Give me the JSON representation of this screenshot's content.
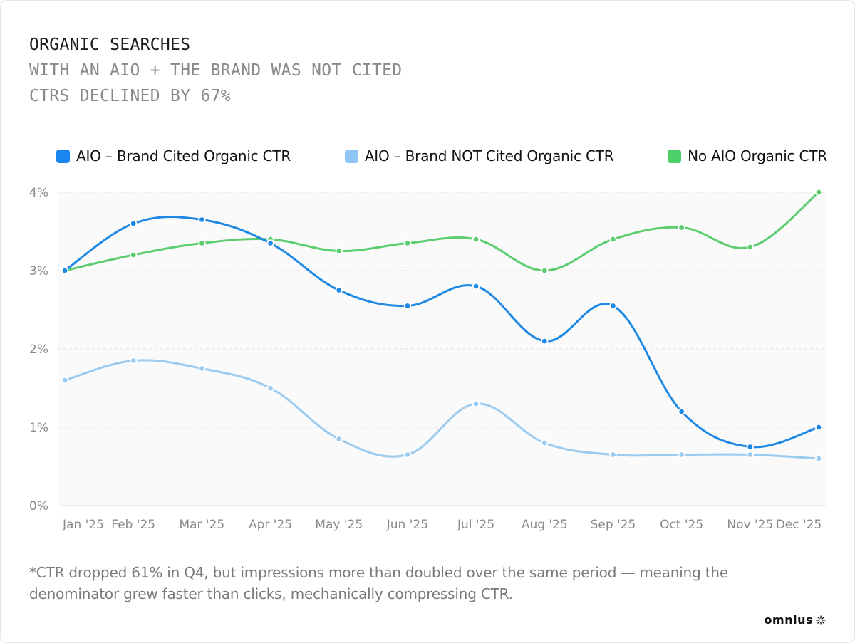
{
  "header": {
    "title": "ORGANIC SEARCHES",
    "subtitle_1": "WITH AN AIO + THE BRAND WAS NOT CITED",
    "subtitle_2": "CTRS DECLINED BY 67%"
  },
  "footnote": "*CTR dropped 61% in Q4, but impressions more than doubled over the same period — meaning the denominator grew faster than clicks, mechanically compressing CTR.",
  "brand": {
    "name": "omnius",
    "logo_icon": "sparkle-icon"
  },
  "chart_data": {
    "type": "line",
    "title": "",
    "xlabel": "",
    "ylabel": "",
    "ylim": [
      0,
      4
    ],
    "y_ticks": [
      "0%",
      "1%",
      "2%",
      "3%",
      "4%"
    ],
    "grid": true,
    "legend_position": "top",
    "categories": [
      "Jan '25",
      "Feb '25",
      "Mar '25",
      "Apr '25",
      "May '25",
      "Jun '25",
      "Jul '25",
      "Aug '25",
      "Sep '25",
      "Oct '25",
      "Nov '25",
      "Dec '25"
    ],
    "series": [
      {
        "name": "AIO – Brand Cited Organic CTR",
        "color": "#1e88e5",
        "legend_color": "#1a85f0",
        "values": [
          3.0,
          3.6,
          3.65,
          3.35,
          2.75,
          2.55,
          2.8,
          2.1,
          2.55,
          1.2,
          0.75,
          1.0
        ]
      },
      {
        "name": "AIO – Brand NOT Cited Organic CTR",
        "color": "#9ccbf0",
        "legend_color": "#8fc6f5",
        "values": [
          1.6,
          1.85,
          1.75,
          1.5,
          0.85,
          0.65,
          1.3,
          0.8,
          0.65,
          0.65,
          0.65,
          0.6
        ]
      },
      {
        "name": "No AIO Organic CTR",
        "color": "#5ccd6e",
        "legend_color": "#4cd067",
        "values": [
          3.0,
          3.2,
          3.35,
          3.4,
          3.25,
          3.35,
          3.4,
          3.0,
          3.4,
          3.55,
          3.3,
          4.0
        ]
      }
    ]
  }
}
